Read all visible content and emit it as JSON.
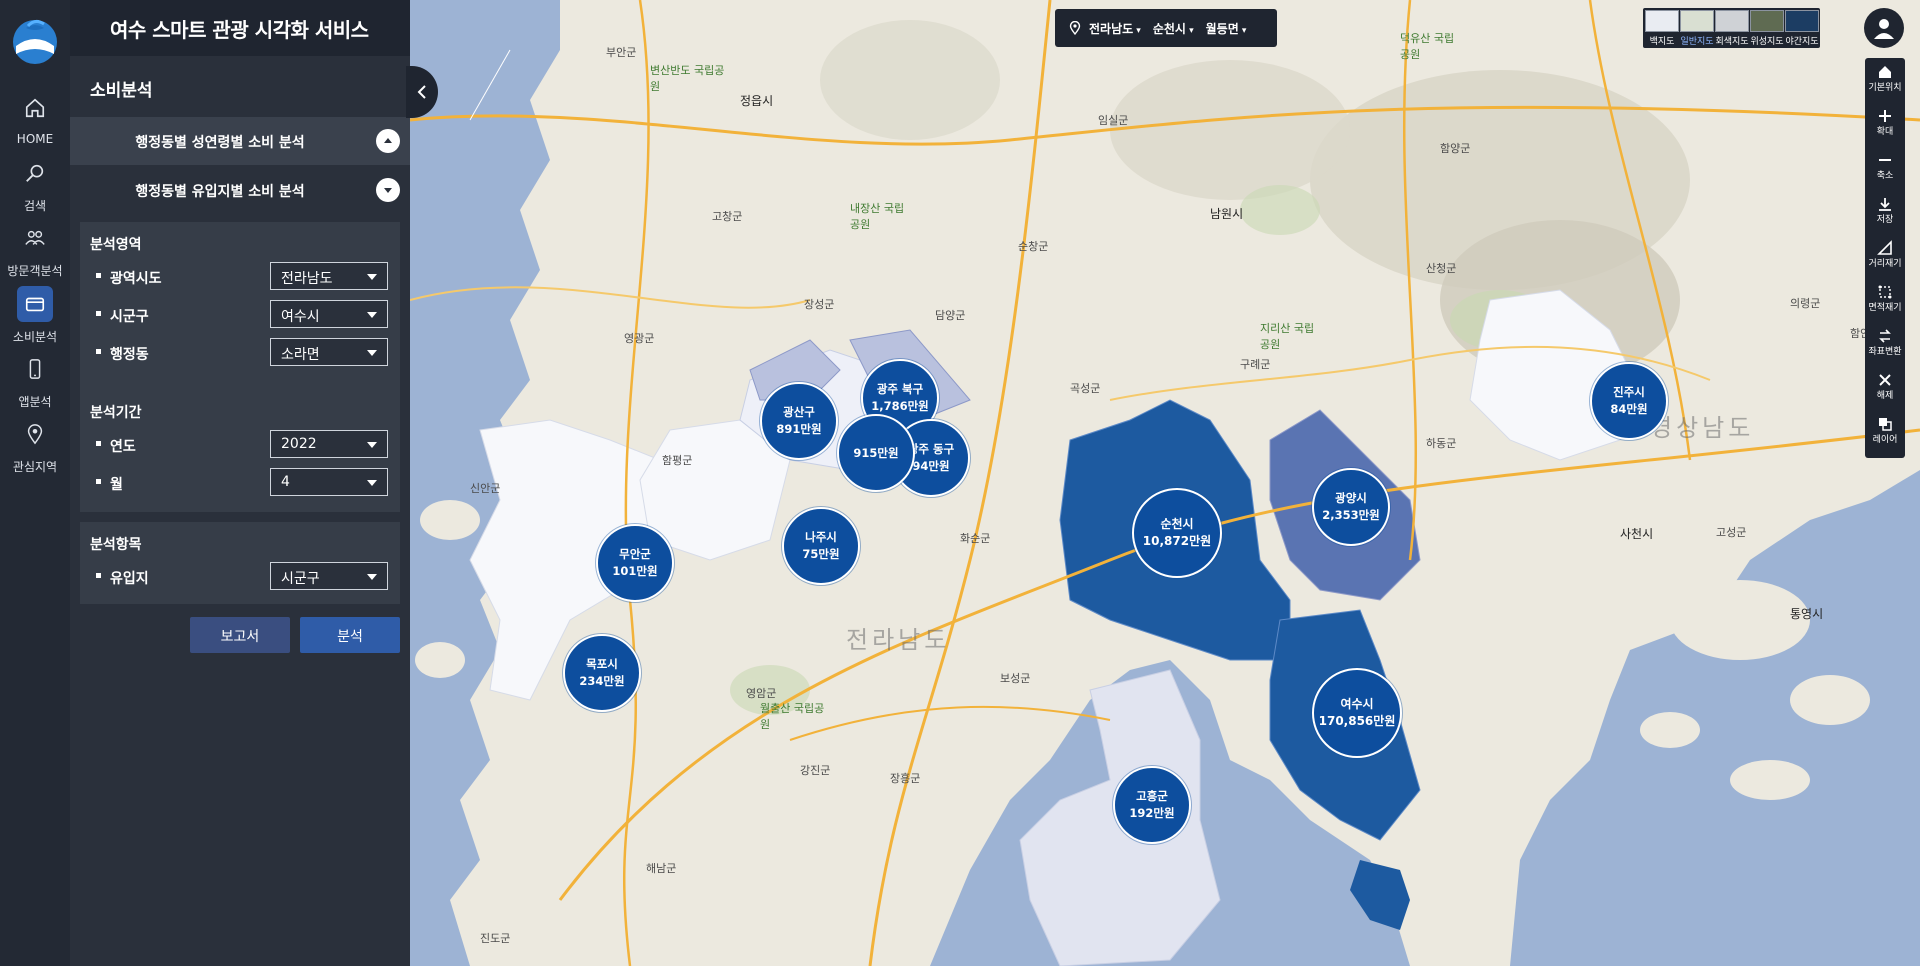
{
  "app": {
    "title": "여수 스마트 관광 시각화 서비스"
  },
  "nav": {
    "items": [
      {
        "label": "HOME",
        "icon": "home-icon"
      },
      {
        "label": "검색",
        "icon": "search-icon"
      },
      {
        "label": "방문객분석",
        "icon": "people-icon"
      },
      {
        "label": "소비분석",
        "icon": "card-icon",
        "active": true
      },
      {
        "label": "앱분석",
        "icon": "phone-icon"
      },
      {
        "label": "관심지역",
        "icon": "pin-icon"
      }
    ]
  },
  "panel": {
    "section_title": "소비분석",
    "accordion": [
      {
        "label": "행정동별 성연령별 소비 분석",
        "state": "collapsed"
      },
      {
        "label": "행정동별 유입지별 소비 분석",
        "state": "expanded"
      }
    ],
    "area": {
      "heading": "분석영역",
      "province_label": "광역시도",
      "province_value": "전라남도",
      "city_label": "시군구",
      "city_value": "여수시",
      "dong_label": "행정동",
      "dong_value": "소라면"
    },
    "period": {
      "heading": "분석기간",
      "year_label": "연도",
      "year_value": "2022",
      "month_label": "월",
      "month_value": "4"
    },
    "item": {
      "heading": "분석항목",
      "origin_label": "유입지",
      "origin_value": "시군구"
    },
    "buttons": {
      "report": "보고서",
      "analyze": "분석"
    }
  },
  "location_bar": {
    "province": "전라남도",
    "city": "순천시",
    "dong": "월등면"
  },
  "map_types": [
    {
      "label": "백지도"
    },
    {
      "label": "일반지도",
      "active": true
    },
    {
      "label": "회색지도"
    },
    {
      "label": "위성지도"
    },
    {
      "label": "야간지도"
    }
  ],
  "tools": [
    "기본위치",
    "확대",
    "축소",
    "저장",
    "거리재기",
    "면적재기",
    "좌표변환",
    "해제",
    "레이어"
  ],
  "bubbles": [
    {
      "name": "광산구",
      "value": "891만원"
    },
    {
      "name": "광주 북구",
      "value": "1,786만원"
    },
    {
      "name": "",
      "value": "915만원"
    },
    {
      "name": "광주 동구",
      "value": "94만원"
    },
    {
      "name": "나주시",
      "value": "75만원"
    },
    {
      "name": "무안군",
      "value": "101만원"
    },
    {
      "name": "목포시",
      "value": "234만원"
    },
    {
      "name": "순천시",
      "value": "10,872만원"
    },
    {
      "name": "광양시",
      "value": "2,353만원"
    },
    {
      "name": "여수시",
      "value": "170,856만원"
    },
    {
      "name": "고흥군",
      "value": "192만원"
    },
    {
      "name": "진주시",
      "value": "84만원"
    }
  ],
  "map_labels": {
    "jeongeup": "정읍시",
    "namwon": "남원시",
    "sacheon": "사천시",
    "tongyeong": "통영시",
    "jeonnam": "전라남도",
    "gyeongnam": "경상남도",
    "damyang": "담양군",
    "gokseong": "곡성군",
    "hwasun": "화순군",
    "boseong": "보성군",
    "jangheung": "장흥군",
    "gangjin": "강진군",
    "haenam": "해남군",
    "yeongam": "영암군",
    "hampyeong": "함평군",
    "yeonggwang": "영광군",
    "jangseong": "장성군",
    "gurye": "구례군",
    "hadong": "하동군",
    "sancheong": "산청군",
    "goseong": "고성군",
    "imsil": "임실군",
    "sunchang": "순창군",
    "gochang": "고창군",
    "buan": "부안군",
    "hamyang": "함양군",
    "jindo": "진도군",
    "sinan": "신안군",
    "uiryeong": "의령군",
    "haman": "함안군",
    "wolchulsan": "월출산 국립공원",
    "jirisan": "지리산 국립공원",
    "naejangsan": "내장산 국립공원",
    "byeonsan": "변산반도 국립공원",
    "deogyusan": "덕유산 국립공원"
  },
  "colors": {
    "bubble": "#0d4e9e",
    "region_dark": "#1d5aa0",
    "region_mid": "#5a74b2",
    "region_light": "#b9c1de",
    "region_white": "#f7f8fb",
    "sea": "#9db3d4",
    "land": "#ece9df",
    "accent": "#2f5ca8"
  }
}
